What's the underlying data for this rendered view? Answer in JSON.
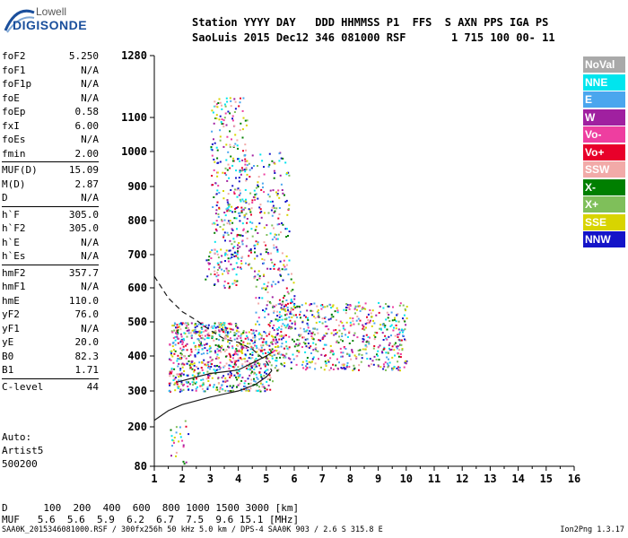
{
  "logo": {
    "top": "Lowell",
    "main": "DIGISONDE"
  },
  "header": {
    "line1": "Station YYYY DAY   DDD HHMMSS P1  FFS  S AXN PPS IGA PS",
    "line2": "SaoLuis 2015 Dec12 346 081000 RSF       1 715 100 00- 11"
  },
  "params_groups": [
    [
      {
        "name": "foF2",
        "value": "5.250"
      },
      {
        "name": "foF1",
        "value": "N/A"
      },
      {
        "name": "foF1p",
        "value": "N/A"
      },
      {
        "name": "foE",
        "value": "N/A"
      },
      {
        "name": "foEp",
        "value": "0.58"
      },
      {
        "name": "fxI",
        "value": "6.00"
      },
      {
        "name": "foEs",
        "value": "N/A"
      },
      {
        "name": "fmin",
        "value": "2.00"
      }
    ],
    [
      {
        "name": "MUF(D)",
        "value": "15.09"
      },
      {
        "name": "M(D)",
        "value": "2.87"
      },
      {
        "name": "D",
        "value": "N/A"
      }
    ],
    [
      {
        "name": "h`F",
        "value": "305.0"
      },
      {
        "name": "h`F2",
        "value": "305.0"
      },
      {
        "name": "h`E",
        "value": "N/A"
      },
      {
        "name": "h`Es",
        "value": "N/A"
      }
    ],
    [
      {
        "name": "hmF2",
        "value": "357.7"
      },
      {
        "name": "hmF1",
        "value": "N/A"
      },
      {
        "name": "hmE",
        "value": "110.0"
      },
      {
        "name": "yF2",
        "value": "76.0"
      },
      {
        "name": "yF1",
        "value": "N/A"
      },
      {
        "name": "yE",
        "value": "20.0"
      },
      {
        "name": "B0",
        "value": "82.3"
      },
      {
        "name": "B1",
        "value": "1.71"
      }
    ],
    [
      {
        "name": "C-level",
        "value": "44"
      }
    ]
  ],
  "auto": {
    "line1": "Auto:",
    "line2": "Artist5",
    "line3": "500200"
  },
  "legend": [
    {
      "label": "NoVal",
      "color": "#a9a9a9"
    },
    {
      "label": "NNE",
      "color": "#00e5ee"
    },
    {
      "label": "E",
      "color": "#4aa6ee"
    },
    {
      "label": "W",
      "color": "#a020a0"
    },
    {
      "label": "Vo-",
      "color": "#ee3ea0"
    },
    {
      "label": "Vo+",
      "color": "#e8002a"
    },
    {
      "label": "SSW",
      "color": "#f2aaa8"
    },
    {
      "label": "X-",
      "color": "#007f00"
    },
    {
      "label": "X+",
      "color": "#7fbf5a"
    },
    {
      "label": "SSE",
      "color": "#d8d400"
    },
    {
      "label": "NNW",
      "color": "#1414c8"
    }
  ],
  "chart_data": {
    "type": "scatter",
    "title": "",
    "xlabel": "",
    "ylabel": "",
    "xlim": [
      1,
      16
    ],
    "ylim": [
      80,
      1280
    ],
    "xticks": [
      "1",
      "2",
      "3",
      "4",
      "5",
      "6",
      "7",
      "8",
      "9",
      "10",
      "11",
      "12",
      "13",
      "14",
      "15",
      "16"
    ],
    "yticks": [
      "80",
      "200",
      "300",
      "400",
      "500",
      "600",
      "700",
      "800",
      "900",
      "1000",
      "1100",
      "1280"
    ],
    "grid": false,
    "legend_position": "right",
    "y_scale": "nonlinear (virtual height, km)",
    "series": [
      {
        "color": "#1a1a1a",
        "style": "dashed",
        "points": [
          [
            1.0,
            635
          ],
          [
            1.5,
            570
          ],
          [
            2.0,
            530
          ],
          [
            2.5,
            505
          ],
          [
            3.0,
            475
          ],
          [
            3.5,
            450
          ],
          [
            4.0,
            440
          ],
          [
            4.5,
            420
          ],
          [
            5.0,
            385
          ],
          [
            5.2,
            358
          ]
        ]
      },
      {
        "color": "#1a1a1a",
        "style": "solid",
        "points": [
          [
            1.0,
            218
          ],
          [
            1.5,
            245
          ],
          [
            2.0,
            262
          ],
          [
            3.0,
            283
          ],
          [
            4.0,
            300
          ],
          [
            4.6,
            318
          ],
          [
            5.0,
            340
          ],
          [
            5.2,
            358
          ]
        ]
      },
      {
        "color": "#1a1a1a",
        "style": "solid",
        "points": [
          [
            1.8,
            325
          ],
          [
            2.5,
            340
          ],
          [
            3.0,
            350
          ],
          [
            3.5,
            355
          ],
          [
            4.0,
            360
          ],
          [
            4.5,
            380
          ],
          [
            5.0,
            400
          ],
          [
            5.2,
            410
          ]
        ]
      }
    ],
    "point_clouds": [
      {
        "x": [
          1.5,
          5.2
        ],
        "y": [
          300,
          480
        ]
      },
      {
        "x": [
          1.6,
          4.0
        ],
        "y": [
          470,
          500
        ]
      },
      {
        "x": [
          2.8,
          4.0
        ],
        "y": [
          600,
          720
        ]
      },
      {
        "x": [
          3.0,
          4.3
        ],
        "y": [
          720,
          1160
        ]
      },
      {
        "x": [
          4.0,
          5.8
        ],
        "y": [
          650,
          1000
        ]
      },
      {
        "x": [
          5.2,
          10.0
        ],
        "y": [
          360,
          560
        ]
      },
      {
        "x": [
          4.5,
          6.0
        ],
        "y": [
          480,
          650
        ]
      },
      {
        "x": [
          1.5,
          2.2
        ],
        "y": [
          80,
          220
        ]
      }
    ]
  },
  "bottom": {
    "d_row": "D      100  200  400  600  800 1000 1500 3000 [km]",
    "muf_row": "MUF   5.6  5.6  5.9  6.2  6.7  7.5  9.6 15.1 [MHz]"
  },
  "footer": {
    "left": "SAA0K_2015346081000.RSF / 300fx256h 50 kHz 5.0 km / DPS-4 SAA0K 903 / 2.6 S 315.8 E",
    "right": "Ion2Png 1.3.17"
  }
}
